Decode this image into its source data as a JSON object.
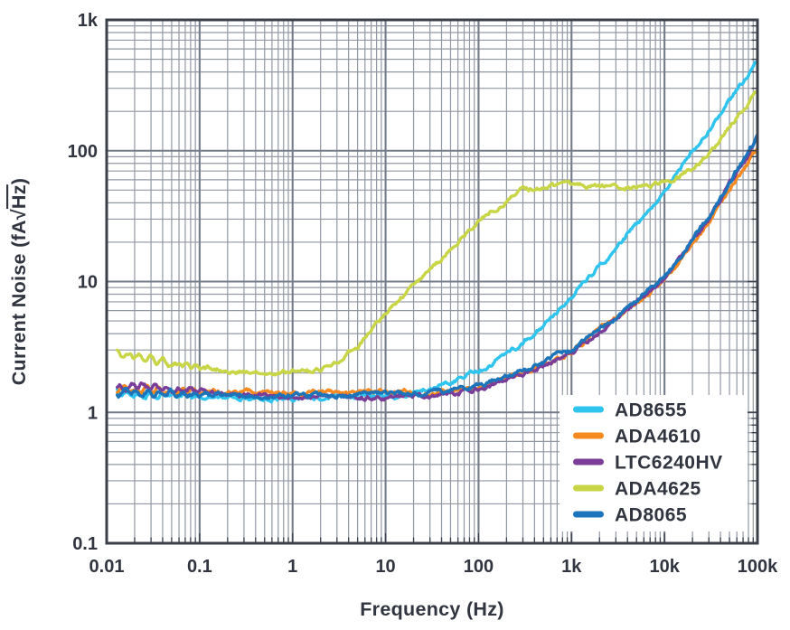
{
  "colors": {
    "background": "#ffffff",
    "text": "#31353F",
    "grid_minor": "#9298A3",
    "grid_major": "#747C89",
    "frame": "#3A3F49",
    "legend_background": "#ffffff"
  },
  "chart_data": {
    "type": "line",
    "title": "",
    "xlabel": "Frequency (Hz)",
    "ylabel": "Current Noise (fA√Hz)",
    "xscale": "log",
    "yscale": "log",
    "xlim": [
      0.01,
      100000
    ],
    "ylim": [
      0.1,
      1000
    ],
    "x_tick_labels": [
      "0.01",
      "0.1",
      "1",
      "10",
      "100",
      "1k",
      "10k",
      "100k"
    ],
    "y_tick_labels": [
      "0.1",
      "1",
      "10",
      "100",
      "1k"
    ],
    "grid": true,
    "legend_position": "inside-bottom-right",
    "series": [
      {
        "name": "AD8655",
        "color": "#2EC4EE",
        "points": [
          [
            0.013,
            1.45
          ],
          [
            0.02,
            1.35
          ],
          [
            0.05,
            1.4
          ],
          [
            0.1,
            1.33
          ],
          [
            0.3,
            1.3
          ],
          [
            1,
            1.3
          ],
          [
            3,
            1.3
          ],
          [
            10,
            1.32
          ],
          [
            20,
            1.38
          ],
          [
            50,
            1.7
          ],
          [
            100,
            2.1
          ],
          [
            200,
            2.7
          ],
          [
            400,
            4.0
          ],
          [
            800,
            6.5
          ],
          [
            1600,
            11
          ],
          [
            3200,
            19
          ],
          [
            6400,
            33
          ],
          [
            12800,
            63
          ],
          [
            25600,
            123
          ],
          [
            51200,
            245
          ],
          [
            100000,
            480
          ]
        ]
      },
      {
        "name": "ADA4610",
        "color": "#F6891F",
        "points": [
          [
            0.013,
            1.5
          ],
          [
            0.05,
            1.45
          ],
          [
            0.1,
            1.42
          ],
          [
            0.3,
            1.42
          ],
          [
            1,
            1.42
          ],
          [
            3,
            1.45
          ],
          [
            10,
            1.45
          ],
          [
            30,
            1.42
          ],
          [
            100,
            1.55
          ],
          [
            300,
            2.0
          ],
          [
            1000,
            2.9
          ],
          [
            3000,
            5.2
          ],
          [
            10000,
            10
          ],
          [
            30000,
            28
          ],
          [
            100000,
            105
          ]
        ]
      },
      {
        "name": "LTC6240HV",
        "color": "#7A3E98",
        "points": [
          [
            0.013,
            1.55
          ],
          [
            0.03,
            1.6
          ],
          [
            0.05,
            1.5
          ],
          [
            0.1,
            1.45
          ],
          [
            0.3,
            1.35
          ],
          [
            1,
            1.32
          ],
          [
            3,
            1.3
          ],
          [
            10,
            1.3
          ],
          [
            30,
            1.32
          ],
          [
            100,
            1.5
          ],
          [
            300,
            2.0
          ],
          [
            1000,
            2.85
          ],
          [
            3000,
            5.2
          ],
          [
            10000,
            10.3
          ],
          [
            30000,
            30
          ],
          [
            100000,
            122
          ]
        ]
      },
      {
        "name": "ADA4625",
        "color": "#C8D546",
        "points": [
          [
            0.013,
            2.9
          ],
          [
            0.02,
            2.75
          ],
          [
            0.03,
            2.5
          ],
          [
            0.05,
            2.35
          ],
          [
            0.1,
            2.2
          ],
          [
            0.2,
            2.1
          ],
          [
            0.3,
            2.05
          ],
          [
            0.5,
            2.0
          ],
          [
            1,
            2.05
          ],
          [
            2,
            2.1
          ],
          [
            3,
            2.4
          ],
          [
            5,
            3.2
          ],
          [
            10,
            5.8
          ],
          [
            30,
            12
          ],
          [
            100,
            29
          ],
          [
            200,
            41
          ],
          [
            300,
            50
          ],
          [
            500,
            53
          ],
          [
            1000,
            54
          ],
          [
            2000,
            53
          ],
          [
            3000,
            52
          ],
          [
            5000,
            53
          ],
          [
            8000,
            56
          ],
          [
            12000,
            60
          ],
          [
            20000,
            72
          ],
          [
            30000,
            95
          ],
          [
            60000,
            180
          ],
          [
            100000,
            290
          ]
        ]
      },
      {
        "name": "AD8065",
        "color": "#1C74BB",
        "points": [
          [
            0.013,
            1.4
          ],
          [
            0.05,
            1.38
          ],
          [
            0.1,
            1.35
          ],
          [
            0.3,
            1.33
          ],
          [
            1,
            1.35
          ],
          [
            3,
            1.35
          ],
          [
            10,
            1.38
          ],
          [
            30,
            1.4
          ],
          [
            100,
            1.6
          ],
          [
            300,
            2.1
          ],
          [
            1000,
            3.0
          ],
          [
            3000,
            5.4
          ],
          [
            10000,
            10.8
          ],
          [
            30000,
            31
          ],
          [
            100000,
            128
          ]
        ]
      }
    ]
  }
}
